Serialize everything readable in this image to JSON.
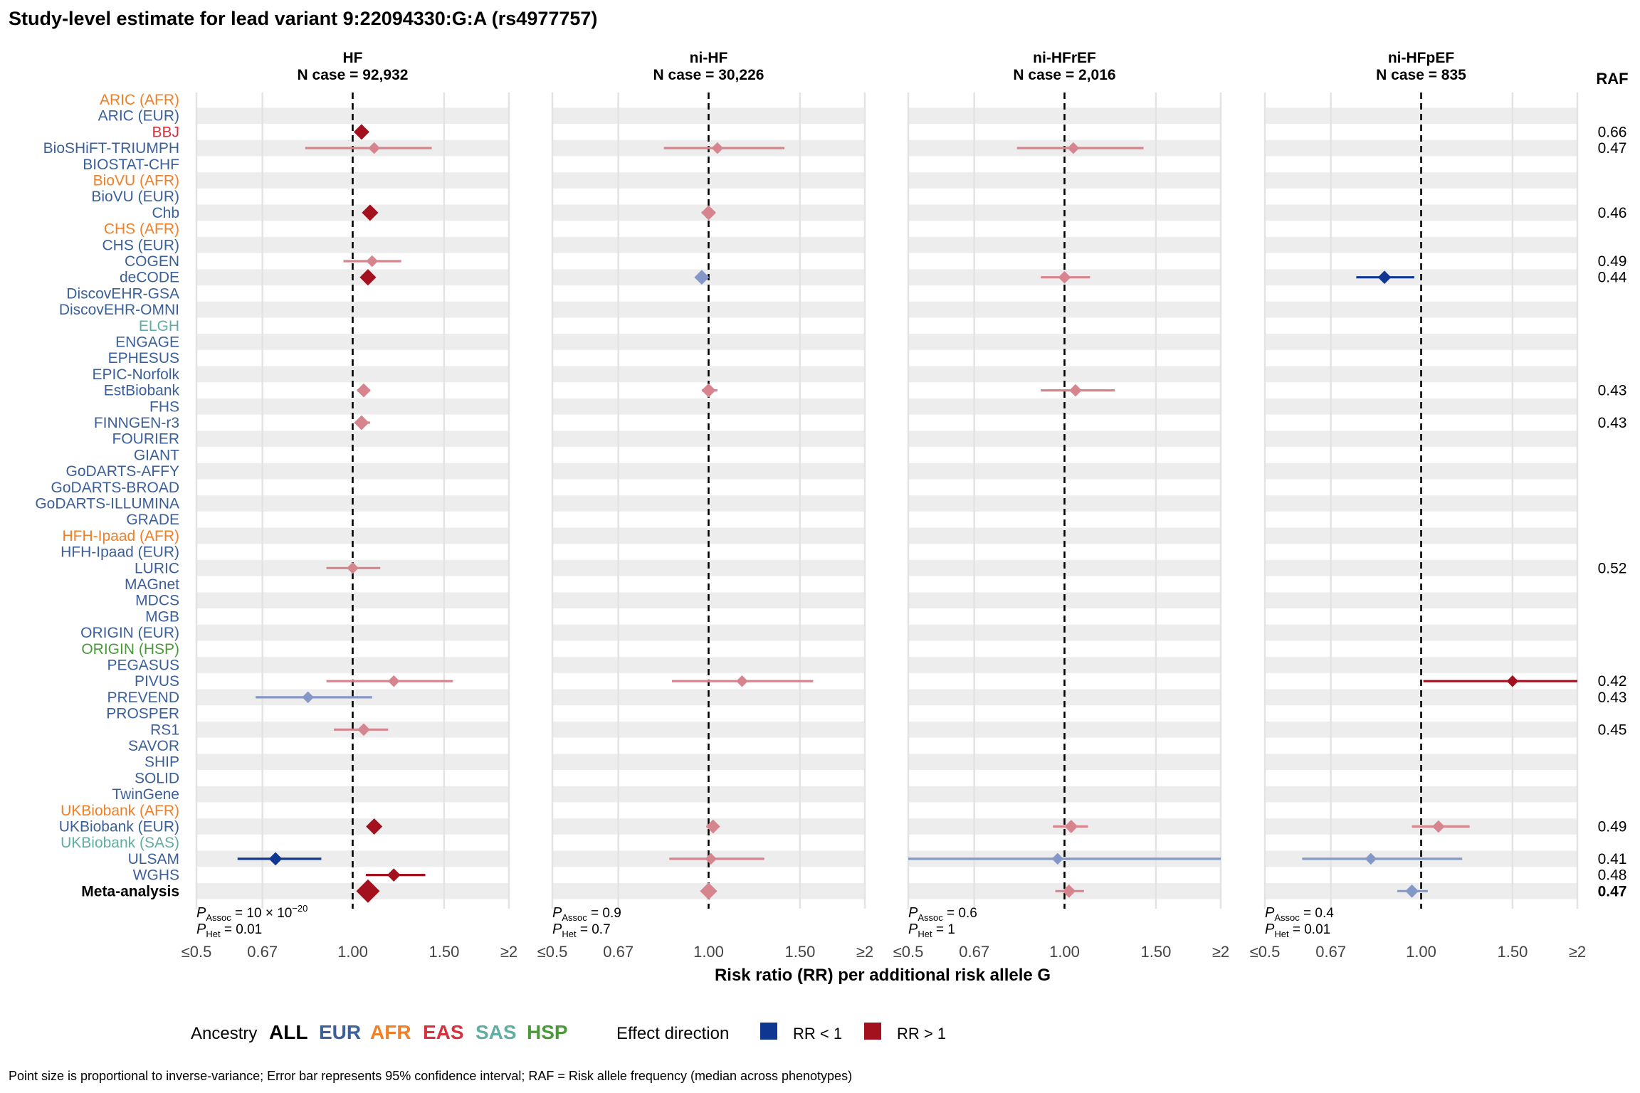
{
  "title": "Study-level estimate for lead variant 9:22094330:G:A (rs4977757)",
  "raf_header": "RAF",
  "xlabel": "Risk ratio (RR) per additional risk allele G",
  "footnote": "Point size is proportional to inverse-variance; Error bar represents 95% confidence interval; RAF = Risk allele frequency (median across phenotypes)",
  "colors": {
    "EUR": "#3b5f99",
    "AFR": "#f07f25",
    "EAS": "#d8313d",
    "SAS": "#60ada2",
    "HSP": "#4a9a3a",
    "ALL": "#000000",
    "rr_gt1": "#a3111e",
    "rr_lt1": "#0f3791",
    "rr_gt1_light": "#d6848d",
    "rr_lt1_light": "#8498c8",
    "stripe": "#ededed",
    "grid": "#e3e3e3"
  },
  "legend": {
    "ancestry_title": "Ancestry",
    "ancestries": [
      {
        "key": "ALL",
        "label": "ALL"
      },
      {
        "key": "EUR",
        "label": "EUR"
      },
      {
        "key": "AFR",
        "label": "AFR"
      },
      {
        "key": "EAS",
        "label": "EAS"
      },
      {
        "key": "SAS",
        "label": "SAS"
      },
      {
        "key": "HSP",
        "label": "HSP"
      }
    ],
    "effect_title": "Effect direction",
    "effects": [
      {
        "key": "rr_lt1",
        "label": "RR < 1"
      },
      {
        "key": "rr_gt1",
        "label": "RR > 1"
      }
    ]
  },
  "chart_data": {
    "type": "forest",
    "title": "Study-level estimate for lead variant 9:22094330:G:A (rs4977757)",
    "xlabel": "Risk ratio (RR) per additional risk allele G",
    "x_scale": "log",
    "xlim": [
      0.5,
      2
    ],
    "x_ticks": [
      0.5,
      0.67,
      1.0,
      1.5,
      2
    ],
    "x_tick_labels": [
      "≤0.5",
      "0.67",
      "1.00",
      "1.50",
      "≥2"
    ],
    "reference_line": 1.0,
    "studies": [
      {
        "name": "ARIC (AFR)",
        "ancestry": "AFR",
        "raf": ""
      },
      {
        "name": "ARIC (EUR)",
        "ancestry": "EUR",
        "raf": ""
      },
      {
        "name": "BBJ",
        "ancestry": "EAS",
        "raf": "0.66"
      },
      {
        "name": "BioSHiFT-TRIUMPH",
        "ancestry": "EUR",
        "raf": "0.47"
      },
      {
        "name": "BIOSTAT-CHF",
        "ancestry": "EUR",
        "raf": ""
      },
      {
        "name": "BioVU (AFR)",
        "ancestry": "AFR",
        "raf": ""
      },
      {
        "name": "BioVU (EUR)",
        "ancestry": "EUR",
        "raf": ""
      },
      {
        "name": "Chb",
        "ancestry": "EUR",
        "raf": "0.46"
      },
      {
        "name": "CHS (AFR)",
        "ancestry": "AFR",
        "raf": ""
      },
      {
        "name": "CHS (EUR)",
        "ancestry": "EUR",
        "raf": ""
      },
      {
        "name": "COGEN",
        "ancestry": "EUR",
        "raf": "0.49"
      },
      {
        "name": "deCODE",
        "ancestry": "EUR",
        "raf": "0.44"
      },
      {
        "name": "DiscovEHR-GSA",
        "ancestry": "EUR",
        "raf": ""
      },
      {
        "name": "DiscovEHR-OMNI",
        "ancestry": "EUR",
        "raf": ""
      },
      {
        "name": "ELGH",
        "ancestry": "SAS",
        "raf": ""
      },
      {
        "name": "ENGAGE",
        "ancestry": "EUR",
        "raf": ""
      },
      {
        "name": "EPHESUS",
        "ancestry": "EUR",
        "raf": ""
      },
      {
        "name": "EPIC-Norfolk",
        "ancestry": "EUR",
        "raf": ""
      },
      {
        "name": "EstBiobank",
        "ancestry": "EUR",
        "raf": "0.43"
      },
      {
        "name": "FHS",
        "ancestry": "EUR",
        "raf": ""
      },
      {
        "name": "FINNGEN-r3",
        "ancestry": "EUR",
        "raf": "0.43"
      },
      {
        "name": "FOURIER",
        "ancestry": "EUR",
        "raf": ""
      },
      {
        "name": "GIANT",
        "ancestry": "EUR",
        "raf": ""
      },
      {
        "name": "GoDARTS-AFFY",
        "ancestry": "EUR",
        "raf": ""
      },
      {
        "name": "GoDARTS-BROAD",
        "ancestry": "EUR",
        "raf": ""
      },
      {
        "name": "GoDARTS-ILLUMINA",
        "ancestry": "EUR",
        "raf": ""
      },
      {
        "name": "GRADE",
        "ancestry": "EUR",
        "raf": ""
      },
      {
        "name": "HFH-Ipaad (AFR)",
        "ancestry": "AFR",
        "raf": ""
      },
      {
        "name": "HFH-Ipaad (EUR)",
        "ancestry": "EUR",
        "raf": ""
      },
      {
        "name": "LURIC",
        "ancestry": "EUR",
        "raf": "0.52"
      },
      {
        "name": "MAGnet",
        "ancestry": "EUR",
        "raf": ""
      },
      {
        "name": "MDCS",
        "ancestry": "EUR",
        "raf": ""
      },
      {
        "name": "MGB",
        "ancestry": "EUR",
        "raf": ""
      },
      {
        "name": "ORIGIN (EUR)",
        "ancestry": "EUR",
        "raf": ""
      },
      {
        "name": "ORIGIN (HSP)",
        "ancestry": "HSP",
        "raf": ""
      },
      {
        "name": "PEGASUS",
        "ancestry": "EUR",
        "raf": ""
      },
      {
        "name": "PIVUS",
        "ancestry": "EUR",
        "raf": "0.42"
      },
      {
        "name": "PREVEND",
        "ancestry": "EUR",
        "raf": "0.43"
      },
      {
        "name": "PROSPER",
        "ancestry": "EUR",
        "raf": ""
      },
      {
        "name": "RS1",
        "ancestry": "EUR",
        "raf": "0.45"
      },
      {
        "name": "SAVOR",
        "ancestry": "EUR",
        "raf": ""
      },
      {
        "name": "SHIP",
        "ancestry": "EUR",
        "raf": ""
      },
      {
        "name": "SOLID",
        "ancestry": "EUR",
        "raf": ""
      },
      {
        "name": "TwinGene",
        "ancestry": "EUR",
        "raf": ""
      },
      {
        "name": "UKBiobank (AFR)",
        "ancestry": "AFR",
        "raf": ""
      },
      {
        "name": "UKBiobank (EUR)",
        "ancestry": "EUR",
        "raf": "0.49"
      },
      {
        "name": "UKBiobank (SAS)",
        "ancestry": "SAS",
        "raf": ""
      },
      {
        "name": "ULSAM",
        "ancestry": "EUR",
        "raf": "0.41"
      },
      {
        "name": "WGHS",
        "ancestry": "EUR",
        "raf": "0.48"
      },
      {
        "name": "Meta-analysis",
        "ancestry": "ALL",
        "raf": "0.47",
        "bold": true
      }
    ],
    "panels": [
      {
        "title": "HF",
        "subtitle": "N case = 92,932",
        "p_assoc": "10 × 10",
        "p_assoc_exp": "−20",
        "p_het": "0.01",
        "estimates": [
          {
            "study": "BBJ",
            "rr": 1.04,
            "lo": 1.04,
            "hi": 1.04,
            "size": 1.0,
            "highlight": true
          },
          {
            "study": "BioSHiFT-TRIUMPH",
            "rr": 1.1,
            "lo": 0.81,
            "hi": 1.42,
            "size": 0.75,
            "highlight": false
          },
          {
            "study": "Chb",
            "rr": 1.08,
            "lo": 1.08,
            "hi": 1.08,
            "size": 1.05,
            "highlight": true
          },
          {
            "study": "COGEN",
            "rr": 1.09,
            "lo": 0.96,
            "hi": 1.24,
            "size": 0.75,
            "highlight": false
          },
          {
            "study": "deCODE",
            "rr": 1.07,
            "lo": 1.07,
            "hi": 1.07,
            "size": 1.05,
            "highlight": true
          },
          {
            "study": "EstBiobank",
            "rr": 1.05,
            "lo": 1.02,
            "hi": 1.08,
            "size": 0.9,
            "highlight": false
          },
          {
            "study": "FINNGEN-r3",
            "rr": 1.04,
            "lo": 1.01,
            "hi": 1.08,
            "size": 0.95,
            "highlight": false
          },
          {
            "study": "LURIC",
            "rr": 1.0,
            "lo": 0.89,
            "hi": 1.13,
            "size": 0.75,
            "highlight": false
          },
          {
            "study": "PIVUS",
            "rr": 1.2,
            "lo": 0.89,
            "hi": 1.56,
            "size": 0.75,
            "highlight": false
          },
          {
            "study": "PREVEND",
            "rr": 0.82,
            "lo": 0.65,
            "hi": 1.09,
            "size": 0.75,
            "highlight": false
          },
          {
            "study": "RS1",
            "rr": 1.05,
            "lo": 0.92,
            "hi": 1.17,
            "size": 0.8,
            "highlight": false
          },
          {
            "study": "UKBiobank (EUR)",
            "rr": 1.1,
            "lo": 1.1,
            "hi": 1.1,
            "size": 1.05,
            "highlight": true
          },
          {
            "study": "ULSAM",
            "rr": 0.71,
            "lo": 0.6,
            "hi": 0.87,
            "size": 0.85,
            "highlight": true
          },
          {
            "study": "WGHS",
            "rr": 1.2,
            "lo": 1.06,
            "hi": 1.38,
            "size": 0.85,
            "highlight": true
          },
          {
            "study": "Meta-analysis",
            "rr": 1.07,
            "lo": 1.07,
            "hi": 1.07,
            "size": 1.5,
            "highlight": true
          }
        ]
      },
      {
        "title": "ni-HF",
        "subtitle": "N case = 30,226",
        "p_assoc": "0.9",
        "p_assoc_exp": "",
        "p_het": "0.7",
        "estimates": [
          {
            "study": "BioSHiFT-TRIUMPH",
            "rr": 1.04,
            "lo": 0.82,
            "hi": 1.4,
            "size": 0.75,
            "highlight": false
          },
          {
            "study": "Chb",
            "rr": 1.0,
            "lo": 0.97,
            "hi": 1.03,
            "size": 0.95,
            "highlight": false
          },
          {
            "study": "deCODE",
            "rr": 0.97,
            "lo": 0.96,
            "hi": 0.98,
            "size": 0.95,
            "highlight": false
          },
          {
            "study": "EstBiobank",
            "rr": 1.0,
            "lo": 0.97,
            "hi": 1.04,
            "size": 0.9,
            "highlight": false
          },
          {
            "study": "PIVUS",
            "rr": 1.16,
            "lo": 0.85,
            "hi": 1.59,
            "size": 0.75,
            "highlight": false
          },
          {
            "study": "UKBiobank (EUR)",
            "rr": 1.02,
            "lo": 0.99,
            "hi": 1.04,
            "size": 0.9,
            "highlight": false
          },
          {
            "study": "ULSAM",
            "rr": 1.01,
            "lo": 0.84,
            "hi": 1.28,
            "size": 0.75,
            "highlight": false
          },
          {
            "study": "Meta-analysis",
            "rr": 1.0,
            "lo": 0.98,
            "hi": 1.02,
            "size": 1.1,
            "highlight": false
          }
        ]
      },
      {
        "title": "ni-HFrEF",
        "subtitle": "N case = 2,016",
        "p_assoc": "0.6",
        "p_assoc_exp": "",
        "p_het": "1",
        "estimates": [
          {
            "study": "BioSHiFT-TRIUMPH",
            "rr": 1.04,
            "lo": 0.81,
            "hi": 1.42,
            "size": 0.75,
            "highlight": false
          },
          {
            "study": "deCODE",
            "rr": 1.0,
            "lo": 0.9,
            "hi": 1.12,
            "size": 0.8,
            "highlight": false
          },
          {
            "study": "EstBiobank",
            "rr": 1.05,
            "lo": 0.9,
            "hi": 1.25,
            "size": 0.8,
            "highlight": false
          },
          {
            "study": "UKBiobank (EUR)",
            "rr": 1.03,
            "lo": 0.95,
            "hi": 1.11,
            "size": 0.85,
            "highlight": false
          },
          {
            "study": "ULSAM",
            "rr": 0.97,
            "lo": 0.5,
            "hi": 2.0,
            "size": 0.75,
            "highlight": false
          },
          {
            "study": "Meta-analysis",
            "rr": 1.02,
            "lo": 0.96,
            "hi": 1.09,
            "size": 0.85,
            "highlight": false
          }
        ]
      },
      {
        "title": "ni-HFpEF",
        "subtitle": "N case = 835",
        "p_assoc": "0.4",
        "p_assoc_exp": "",
        "p_het": "0.01",
        "estimates": [
          {
            "study": "deCODE",
            "rr": 0.85,
            "lo": 0.75,
            "hi": 0.97,
            "size": 0.85,
            "highlight": true
          },
          {
            "study": "PIVUS",
            "rr": 1.5,
            "lo": 1.01,
            "hi": 2.0,
            "size": 0.75,
            "highlight": true
          },
          {
            "study": "UKBiobank (EUR)",
            "rr": 1.08,
            "lo": 0.96,
            "hi": 1.24,
            "size": 0.8,
            "highlight": false
          },
          {
            "study": "ULSAM",
            "rr": 0.8,
            "lo": 0.59,
            "hi": 1.2,
            "size": 0.75,
            "highlight": false
          },
          {
            "study": "Meta-analysis",
            "rr": 0.96,
            "lo": 0.9,
            "hi": 1.03,
            "size": 0.85,
            "highlight": false
          }
        ]
      }
    ]
  }
}
